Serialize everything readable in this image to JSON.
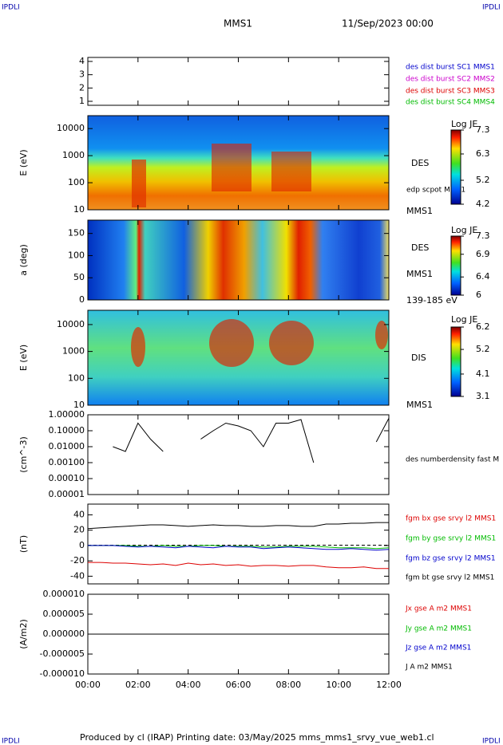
{
  "header": {
    "corner_left": "IPDLI",
    "corner_right": "IPDLI",
    "spacecraft": "MMS1",
    "date": "11/Sep/2023 00:00"
  },
  "footer": {
    "text": "Produced by cl (IRAP)   Printing date: 03/May/2025   mms_mms1_srvy_vue_web1.cl",
    "corner_left": "IPDLI",
    "corner_right": "IPDLI"
  },
  "chart_data": [
    {
      "type": "blank",
      "ylim": [
        0.7,
        4.3
      ],
      "yticks": [
        1,
        2,
        3,
        4
      ],
      "series": [
        {
          "name": "des dist burst SC1 MMS1",
          "color": "#0000cc"
        },
        {
          "name": "des dist burst SC2 MMS2",
          "color": "#cc00cc"
        },
        {
          "name": "des dist burst SC3 MMS3",
          "color": "#dd0000"
        },
        {
          "name": "des dist burst SC4 MMS4",
          "color": "#00bb00"
        }
      ]
    },
    {
      "type": "spectrogram",
      "ylabel": "E (eV)",
      "log_scale": true,
      "ylim": [
        10,
        30000
      ],
      "yticks": [
        10,
        100,
        1000,
        10000
      ],
      "annotations": [
        "DES",
        "edp scpot MMS1",
        "MMS1"
      ],
      "colorbar": {
        "title": "Log JE",
        "ticks": [
          4.2,
          5.2,
          6.3,
          7.3
        ]
      }
    },
    {
      "type": "spectrogram",
      "ylabel": "a (deg)",
      "log_scale": false,
      "ylim": [
        0,
        180
      ],
      "yticks": [
        0,
        50,
        100,
        150
      ],
      "annotations": [
        "DES",
        "MMS1",
        "139-185 eV"
      ],
      "colorbar": {
        "title": "Log JE",
        "ticks": [
          6.0,
          6.4,
          6.9,
          7.3
        ]
      }
    },
    {
      "type": "spectrogram",
      "ylabel": "E (eV)",
      "log_scale": true,
      "ylim": [
        10,
        34000
      ],
      "yticks": [
        10,
        100,
        1000,
        10000
      ],
      "annotations": [
        "DIS",
        "MMS1"
      ],
      "colorbar": {
        "title": "Log JE",
        "ticks": [
          3.1,
          4.1,
          5.2,
          6.2
        ]
      }
    },
    {
      "type": "line",
      "ylabel": "(cm^-3)",
      "log_scale": true,
      "ylim": [
        1e-05,
        1
      ],
      "yticks": [
        {
          "value": 1,
          "label": "1.00000"
        },
        {
          "value": 0.1,
          "label": "0.10000"
        },
        {
          "value": 0.01,
          "label": "0.01000"
        },
        {
          "value": 0.001,
          "label": "0.00100"
        },
        {
          "value": 0.0001,
          "label": "0.00010"
        },
        {
          "value": 1e-05,
          "label": "0.00001"
        }
      ],
      "x": [
        0,
        0.5,
        1,
        1.5,
        2,
        2.5,
        3,
        3.5,
        4,
        4.5,
        5,
        5.5,
        6,
        6.5,
        7,
        7.5,
        8,
        8.5,
        9,
        9.5,
        10,
        10.5,
        11,
        11.5,
        12
      ],
      "series": [
        {
          "name": "des numberdensity fast M",
          "color": "#000000",
          "values": [
            null,
            null,
            0.01,
            0.005,
            0.3,
            0.03,
            0.005,
            null,
            null,
            0.03,
            0.1,
            0.3,
            0.2,
            0.1,
            0.01,
            0.3,
            0.3,
            0.5,
            0.001,
            null,
            null,
            null,
            null,
            0.02,
            0.6
          ]
        }
      ]
    },
    {
      "type": "line",
      "ylabel": "(nT)",
      "log_scale": false,
      "ylim": [
        -50,
        54
      ],
      "yticks": [
        40,
        20,
        0,
        -20,
        -40
      ],
      "x": [
        0,
        0.5,
        1,
        1.5,
        2,
        2.5,
        3,
        3.5,
        4,
        4.5,
        5,
        5.5,
        6,
        6.5,
        7,
        7.5,
        8,
        8.5,
        9,
        9.5,
        10,
        10.5,
        11,
        11.5,
        12
      ],
      "series": [
        {
          "name": "fgm bx gse srvy l2 MMS1",
          "color": "#dd0000",
          "values": [
            -22,
            -22,
            -23,
            -23,
            -24,
            -25,
            -24,
            -26,
            -23,
            -25,
            -24,
            -26,
            -25,
            -27,
            -26,
            -26,
            -27,
            -26,
            -26,
            -28,
            -29,
            -29,
            -28,
            -30,
            -30
          ]
        },
        {
          "name": "fgm by gse srvy l2 MMS1",
          "color": "#00bb00",
          "values": [
            0,
            0,
            0,
            0,
            -1,
            -1,
            0,
            -1,
            -1,
            0,
            0,
            -1,
            -1,
            -1,
            -2,
            -2,
            -1,
            -1,
            -1,
            -2,
            -3,
            -3,
            -3,
            -4,
            -3
          ]
        },
        {
          "name": "fgm bz gse srvy l2 MMS1",
          "color": "#0000cc",
          "values": [
            0,
            0,
            0,
            -1,
            -2,
            -1,
            -2,
            -3,
            -1,
            -2,
            -3,
            -1,
            -2,
            -2,
            -4,
            -3,
            -2,
            -3,
            -4,
            -5,
            -5,
            -4,
            -5,
            -6,
            -5
          ]
        },
        {
          "name": "fgm bt gse srvy l2 MMS1",
          "color": "#000000",
          "values": [
            22,
            23,
            24,
            25,
            26,
            27,
            27,
            26,
            25,
            26,
            27,
            26,
            26,
            25,
            25,
            26,
            26,
            25,
            25,
            28,
            28,
            29,
            29,
            30,
            30
          ]
        }
      ]
    },
    {
      "type": "line",
      "ylabel": "(A/m2)",
      "log_scale": false,
      "ylim": [
        -1e-05,
        1e-05
      ],
      "yticks": [
        {
          "value": 1e-05,
          "label": "0.000010"
        },
        {
          "value": 5e-06,
          "label": "0.000005"
        },
        {
          "value": 0,
          "label": "0.000000"
        },
        {
          "value": -5e-06,
          "label": "-0.000005"
        },
        {
          "value": -1e-05,
          "label": "-0.000010"
        }
      ],
      "x": [
        0,
        1,
        2,
        3,
        4,
        5,
        6,
        7,
        8,
        9,
        10,
        11,
        12
      ],
      "series": [
        {
          "name": "Jx gse A m2 MMS1",
          "color": "#dd0000",
          "values": [
            0,
            0,
            0,
            0,
            0,
            0,
            0,
            0,
            0,
            0,
            0,
            0,
            0
          ]
        },
        {
          "name": "Jy gse A m2 MMS1",
          "color": "#00bb00",
          "values": [
            0,
            0,
            0,
            0,
            0,
            0,
            0,
            0,
            0,
            0,
            0,
            0,
            0
          ]
        },
        {
          "name": "Jz gse A m2 MMS1",
          "color": "#0000cc",
          "values": [
            0,
            0,
            0,
            0,
            0,
            0,
            0,
            0,
            0,
            0,
            0,
            0,
            0
          ]
        },
        {
          "name": "J A m2 MMS1",
          "color": "#000000",
          "values": [
            0,
            0,
            0,
            0,
            0,
            0,
            0,
            0,
            0,
            0,
            0,
            0,
            0
          ]
        }
      ],
      "xlim": [
        0,
        12
      ],
      "xticks": [
        {
          "value": 0,
          "label": "00:00"
        },
        {
          "value": 2,
          "label": "02:00"
        },
        {
          "value": 4,
          "label": "04:00"
        },
        {
          "value": 6,
          "label": "06:00"
        },
        {
          "value": 8,
          "label": "08:00"
        },
        {
          "value": 10,
          "label": "10:00"
        },
        {
          "value": 12,
          "label": "12:00"
        }
      ]
    }
  ]
}
